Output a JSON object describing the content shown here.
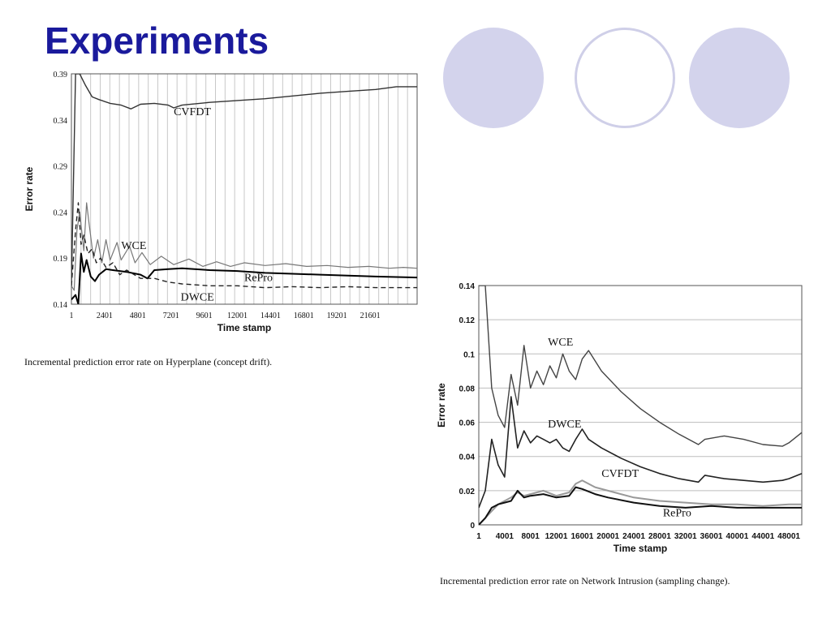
{
  "slide": {
    "title": "Experiments",
    "title_color": "#1a1a9c",
    "deco_fill": "#d3d3ec",
    "deco_ring": "#cfcfe8"
  },
  "chart_data": [
    {
      "type": "line",
      "xlabel": "Time stamp",
      "ylabel": "Error rate",
      "caption": "Incremental prediction error rate on Hyperplane (concept drift).",
      "xlim": [
        1,
        25000
      ],
      "ylim": [
        0.14,
        0.39
      ],
      "yticks": [
        "0.39",
        "0.34",
        "0.29",
        "0.24",
        "0.19",
        "0.14"
      ],
      "yticks_values": [
        0.39,
        0.34,
        0.29,
        0.24,
        0.19,
        0.14
      ],
      "xticks": [
        "1",
        "2401",
        "4801",
        "7201",
        "9601",
        "12001",
        "14401",
        "16801",
        "19201",
        "21601"
      ],
      "xticks_values": [
        1,
        2401,
        4801,
        7201,
        9601,
        12001,
        14401,
        16801,
        19201,
        21601
      ],
      "grid": "vertical",
      "series": [
        {
          "name": "CVFDT",
          "color": "#333333",
          "dash": "",
          "width": 1.4,
          "x": [
            1,
            300,
            600,
            1000,
            1500,
            2000,
            2800,
            3600,
            4300,
            5000,
            6000,
            7000,
            7400,
            8000,
            10000,
            12000,
            14000,
            16000,
            18000,
            20000,
            22000,
            23500,
            25000
          ],
          "y": [
            0.16,
            0.39,
            0.39,
            0.378,
            0.365,
            0.362,
            0.358,
            0.356,
            0.352,
            0.357,
            0.358,
            0.356,
            0.353,
            0.356,
            0.359,
            0.361,
            0.363,
            0.366,
            0.369,
            0.371,
            0.373,
            0.376,
            0.376
          ]
        },
        {
          "name": "WCE",
          "color": "#777777",
          "dash": "",
          "width": 1.2,
          "x": [
            1,
            200,
            400,
            600,
            900,
            1100,
            1300,
            1600,
            1900,
            2200,
            2500,
            2800,
            3300,
            3600,
            4200,
            4600,
            5100,
            5700,
            6500,
            7400,
            8500,
            9500,
            10500,
            11500,
            12500,
            14000,
            15500,
            17000,
            18500,
            20000,
            21500,
            23000,
            24000,
            25000
          ],
          "y": [
            0.16,
            0.155,
            0.22,
            0.24,
            0.198,
            0.25,
            0.225,
            0.19,
            0.21,
            0.185,
            0.21,
            0.188,
            0.207,
            0.188,
            0.203,
            0.185,
            0.196,
            0.183,
            0.192,
            0.183,
            0.189,
            0.181,
            0.186,
            0.181,
            0.185,
            0.182,
            0.184,
            0.181,
            0.182,
            0.18,
            0.181,
            0.179,
            0.18,
            0.179
          ]
        },
        {
          "name": "RePro",
          "color": "#000000",
          "dash": "",
          "width": 2.0,
          "x": [
            1,
            300,
            500,
            700,
            900,
            1100,
            1400,
            1700,
            2000,
            2500,
            3000,
            4000,
            5000,
            5500,
            6000,
            7000,
            8000,
            10000,
            12000,
            14000,
            16000,
            18000,
            20000,
            22000,
            25000
          ],
          "y": [
            0.145,
            0.15,
            0.14,
            0.195,
            0.175,
            0.188,
            0.17,
            0.165,
            0.172,
            0.178,
            0.177,
            0.175,
            0.172,
            0.168,
            0.177,
            0.178,
            0.179,
            0.177,
            0.176,
            0.174,
            0.173,
            0.172,
            0.171,
            0.17,
            0.169
          ]
        },
        {
          "name": "DWCE",
          "color": "#222222",
          "dash": "6,4",
          "width": 1.4,
          "x": [
            1,
            300,
            500,
            700,
            900,
            1200,
            1500,
            1800,
            2100,
            2500,
            3000,
            3500,
            4000,
            5000,
            6000,
            7000,
            8000,
            10000,
            12000,
            14000,
            16000,
            18000,
            20000,
            22000,
            25000
          ],
          "y": [
            0.16,
            0.22,
            0.25,
            0.205,
            0.215,
            0.195,
            0.2,
            0.185,
            0.19,
            0.18,
            0.185,
            0.172,
            0.177,
            0.168,
            0.168,
            0.164,
            0.162,
            0.16,
            0.16,
            0.158,
            0.159,
            0.158,
            0.159,
            0.158,
            0.158
          ]
        }
      ],
      "labels": [
        {
          "text": "CVFDT",
          "x": 7400,
          "y": 0.345
        },
        {
          "text": "WCE",
          "x": 3600,
          "y": 0.2
        },
        {
          "text": "RePro",
          "x": 12500,
          "y": 0.165
        },
        {
          "text": "DWCE",
          "x": 7900,
          "y": 0.144
        }
      ]
    },
    {
      "type": "line",
      "xlabel": "Time stamp",
      "ylabel": "Error rate",
      "caption": "Incremental prediction error rate on Network Intrusion (sampling change).",
      "xlim": [
        1,
        50000
      ],
      "ylim": [
        0,
        0.14
      ],
      "yticks": [
        "0.14",
        "0.12",
        "0.1",
        "0.08",
        "0.06",
        "0.04",
        "0.02",
        "0"
      ],
      "yticks_values": [
        0.14,
        0.12,
        0.1,
        0.08,
        0.06,
        0.04,
        0.02,
        0
      ],
      "xticks": [
        "1",
        "4001",
        "8001",
        "12001",
        "16001",
        "20001",
        "24001",
        "28001",
        "32001",
        "36001",
        "40001",
        "44001",
        "48001"
      ],
      "xticks_values": [
        1,
        4001,
        8001,
        12001,
        16001,
        20001,
        24001,
        28001,
        32001,
        36001,
        40001,
        44001,
        48001
      ],
      "grid": "horizontal",
      "series": [
        {
          "name": "WCE",
          "color": "#444444",
          "dash": "",
          "width": 1.4,
          "x": [
            1,
            1000,
            2000,
            3000,
            4000,
            5000,
            6000,
            7000,
            8000,
            9000,
            10000,
            11000,
            12000,
            13000,
            14000,
            15000,
            16000,
            17000,
            19000,
            22000,
            25000,
            28000,
            31000,
            34000,
            35000,
            38000,
            41000,
            44000,
            47000,
            48000,
            50000
          ],
          "y": [
            0.14,
            0.14,
            0.08,
            0.064,
            0.057,
            0.088,
            0.07,
            0.105,
            0.08,
            0.09,
            0.082,
            0.093,
            0.086,
            0.1,
            0.09,
            0.085,
            0.097,
            0.102,
            0.09,
            0.078,
            0.068,
            0.06,
            0.053,
            0.047,
            0.05,
            0.052,
            0.05,
            0.047,
            0.046,
            0.048,
            0.054
          ]
        },
        {
          "name": "DWCE",
          "color": "#222222",
          "dash": "",
          "width": 1.6,
          "x": [
            1,
            1000,
            2000,
            3000,
            4000,
            5000,
            6000,
            7000,
            8000,
            9000,
            10000,
            11000,
            12000,
            13000,
            14000,
            15000,
            16000,
            17000,
            19000,
            22000,
            25000,
            28000,
            31000,
            34000,
            35000,
            38000,
            41000,
            44000,
            47000,
            48000,
            50000
          ],
          "y": [
            0.01,
            0.02,
            0.05,
            0.035,
            0.028,
            0.075,
            0.045,
            0.055,
            0.048,
            0.052,
            0.05,
            0.048,
            0.05,
            0.045,
            0.043,
            0.05,
            0.056,
            0.05,
            0.045,
            0.039,
            0.034,
            0.03,
            0.027,
            0.025,
            0.029,
            0.027,
            0.026,
            0.025,
            0.026,
            0.027,
            0.03
          ]
        },
        {
          "name": "CVFDT",
          "color": "#999999",
          "dash": "",
          "width": 2.0,
          "x": [
            1,
            1000,
            2000,
            3000,
            4000,
            5000,
            6000,
            7000,
            8000,
            10000,
            12000,
            14000,
            15000,
            16000,
            18000,
            20000,
            24000,
            28000,
            32000,
            36000,
            40000,
            44000,
            48000,
            50000
          ],
          "y": [
            0,
            0.004,
            0.008,
            0.012,
            0.014,
            0.016,
            0.019,
            0.017,
            0.018,
            0.02,
            0.017,
            0.019,
            0.024,
            0.026,
            0.022,
            0.02,
            0.016,
            0.014,
            0.013,
            0.012,
            0.012,
            0.011,
            0.012,
            0.012
          ]
        },
        {
          "name": "RePro",
          "color": "#111111",
          "dash": "",
          "width": 2.0,
          "x": [
            1,
            1000,
            2000,
            3000,
            4000,
            5000,
            6000,
            7000,
            8000,
            10000,
            12000,
            14000,
            15000,
            16000,
            18000,
            20000,
            24000,
            28000,
            32000,
            36000,
            40000,
            44000,
            48000,
            50000
          ],
          "y": [
            0,
            0.004,
            0.01,
            0.012,
            0.013,
            0.014,
            0.02,
            0.016,
            0.017,
            0.018,
            0.016,
            0.017,
            0.022,
            0.021,
            0.018,
            0.016,
            0.013,
            0.011,
            0.01,
            0.011,
            0.01,
            0.01,
            0.01,
            0.01
          ]
        }
      ],
      "labels": [
        {
          "text": "WCE",
          "x": 10700,
          "y": 0.105
        },
        {
          "text": "DWCE",
          "x": 10700,
          "y": 0.057
        },
        {
          "text": "CVFDT",
          "x": 19000,
          "y": 0.028
        },
        {
          "text": "RePro",
          "x": 28500,
          "y": 0.005
        }
      ]
    }
  ]
}
